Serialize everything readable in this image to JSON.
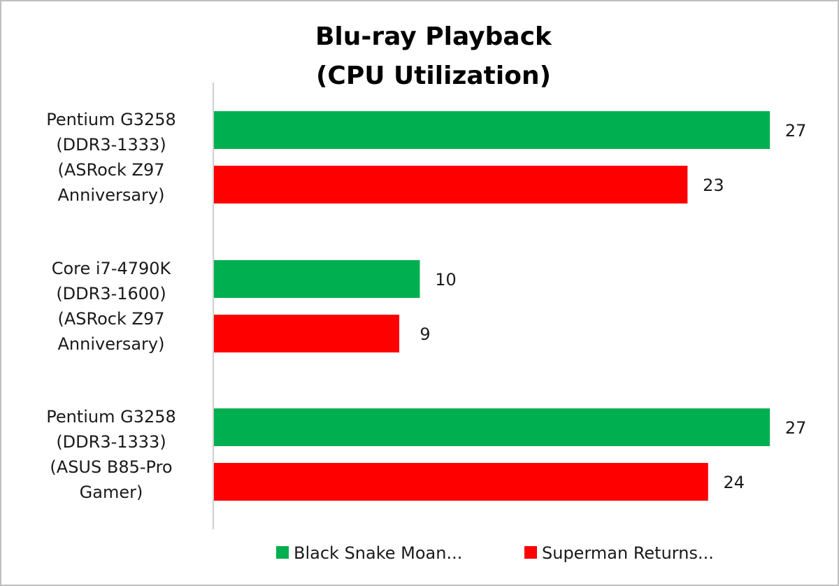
{
  "chart_data": {
    "type": "bar",
    "orientation": "horizontal",
    "title": "Blu-ray Playback",
    "subtitle": "(CPU Utilization)",
    "categories": [
      [
        "Pentium G3258",
        "(DDR3-1333)",
        "(ASRock Z97",
        "Anniversary)"
      ],
      [
        "Core i7-4790K",
        "(DDR3-1600)",
        "(ASRock Z97",
        "Anniversary)"
      ],
      [
        "Pentium G3258",
        "(DDR3-1333)",
        "(ASUS B85-Pro",
        "Gamer)"
      ]
    ],
    "series": [
      {
        "name": "Black Snake Moan...",
        "color": "#00b050",
        "values": [
          27,
          10,
          27
        ]
      },
      {
        "name": "Superman Returns...",
        "color": "#ff0000",
        "values": [
          23,
          9,
          24
        ]
      }
    ],
    "xlim": [
      0,
      30
    ],
    "grid": false,
    "legend_position": "bottom"
  }
}
